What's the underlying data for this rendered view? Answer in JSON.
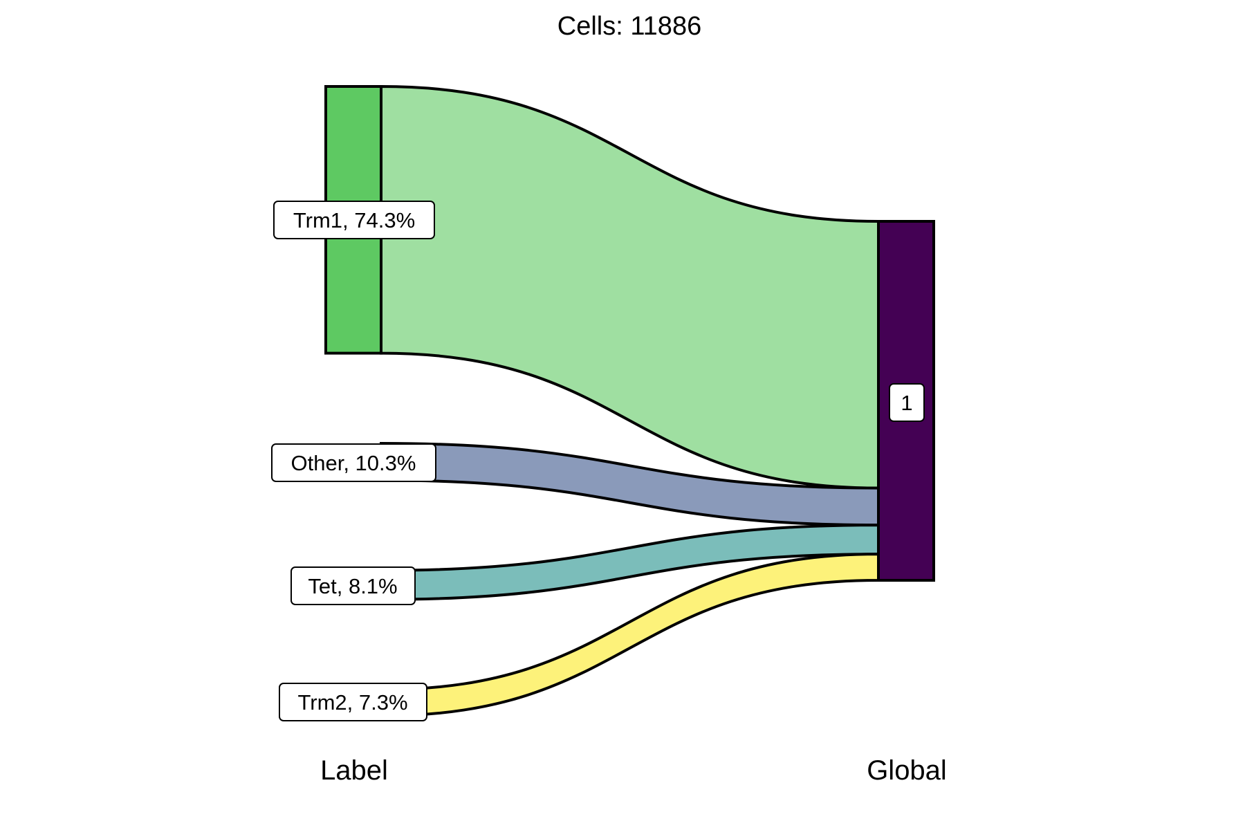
{
  "chart_data": {
    "type": "sankey",
    "title": "Cells:  11886",
    "axis_labels": [
      "Label",
      "Global"
    ],
    "left_nodes": [
      {
        "name": "Trm1",
        "label": "Trm1, 74.3%",
        "percent": 74.3,
        "color": "#5ec962",
        "flow_color": "#9fdfa1"
      },
      {
        "name": "Other",
        "label": "Other, 10.3%",
        "percent": 10.3,
        "color": "#8a9aba",
        "flow_color": "#8a9aba"
      },
      {
        "name": "Tet",
        "label": "Tet, 8.1%",
        "percent": 8.1,
        "color": "#7bbdba",
        "flow_color": "#7bbdba"
      },
      {
        "name": "Trm2",
        "label": "Trm2, 7.3%",
        "percent": 7.3,
        "color": "#fdf27a",
        "flow_color": "#fdf27a"
      }
    ],
    "right_nodes": [
      {
        "name": "1",
        "label": "1",
        "percent": 100,
        "color": "#440154"
      }
    ]
  }
}
